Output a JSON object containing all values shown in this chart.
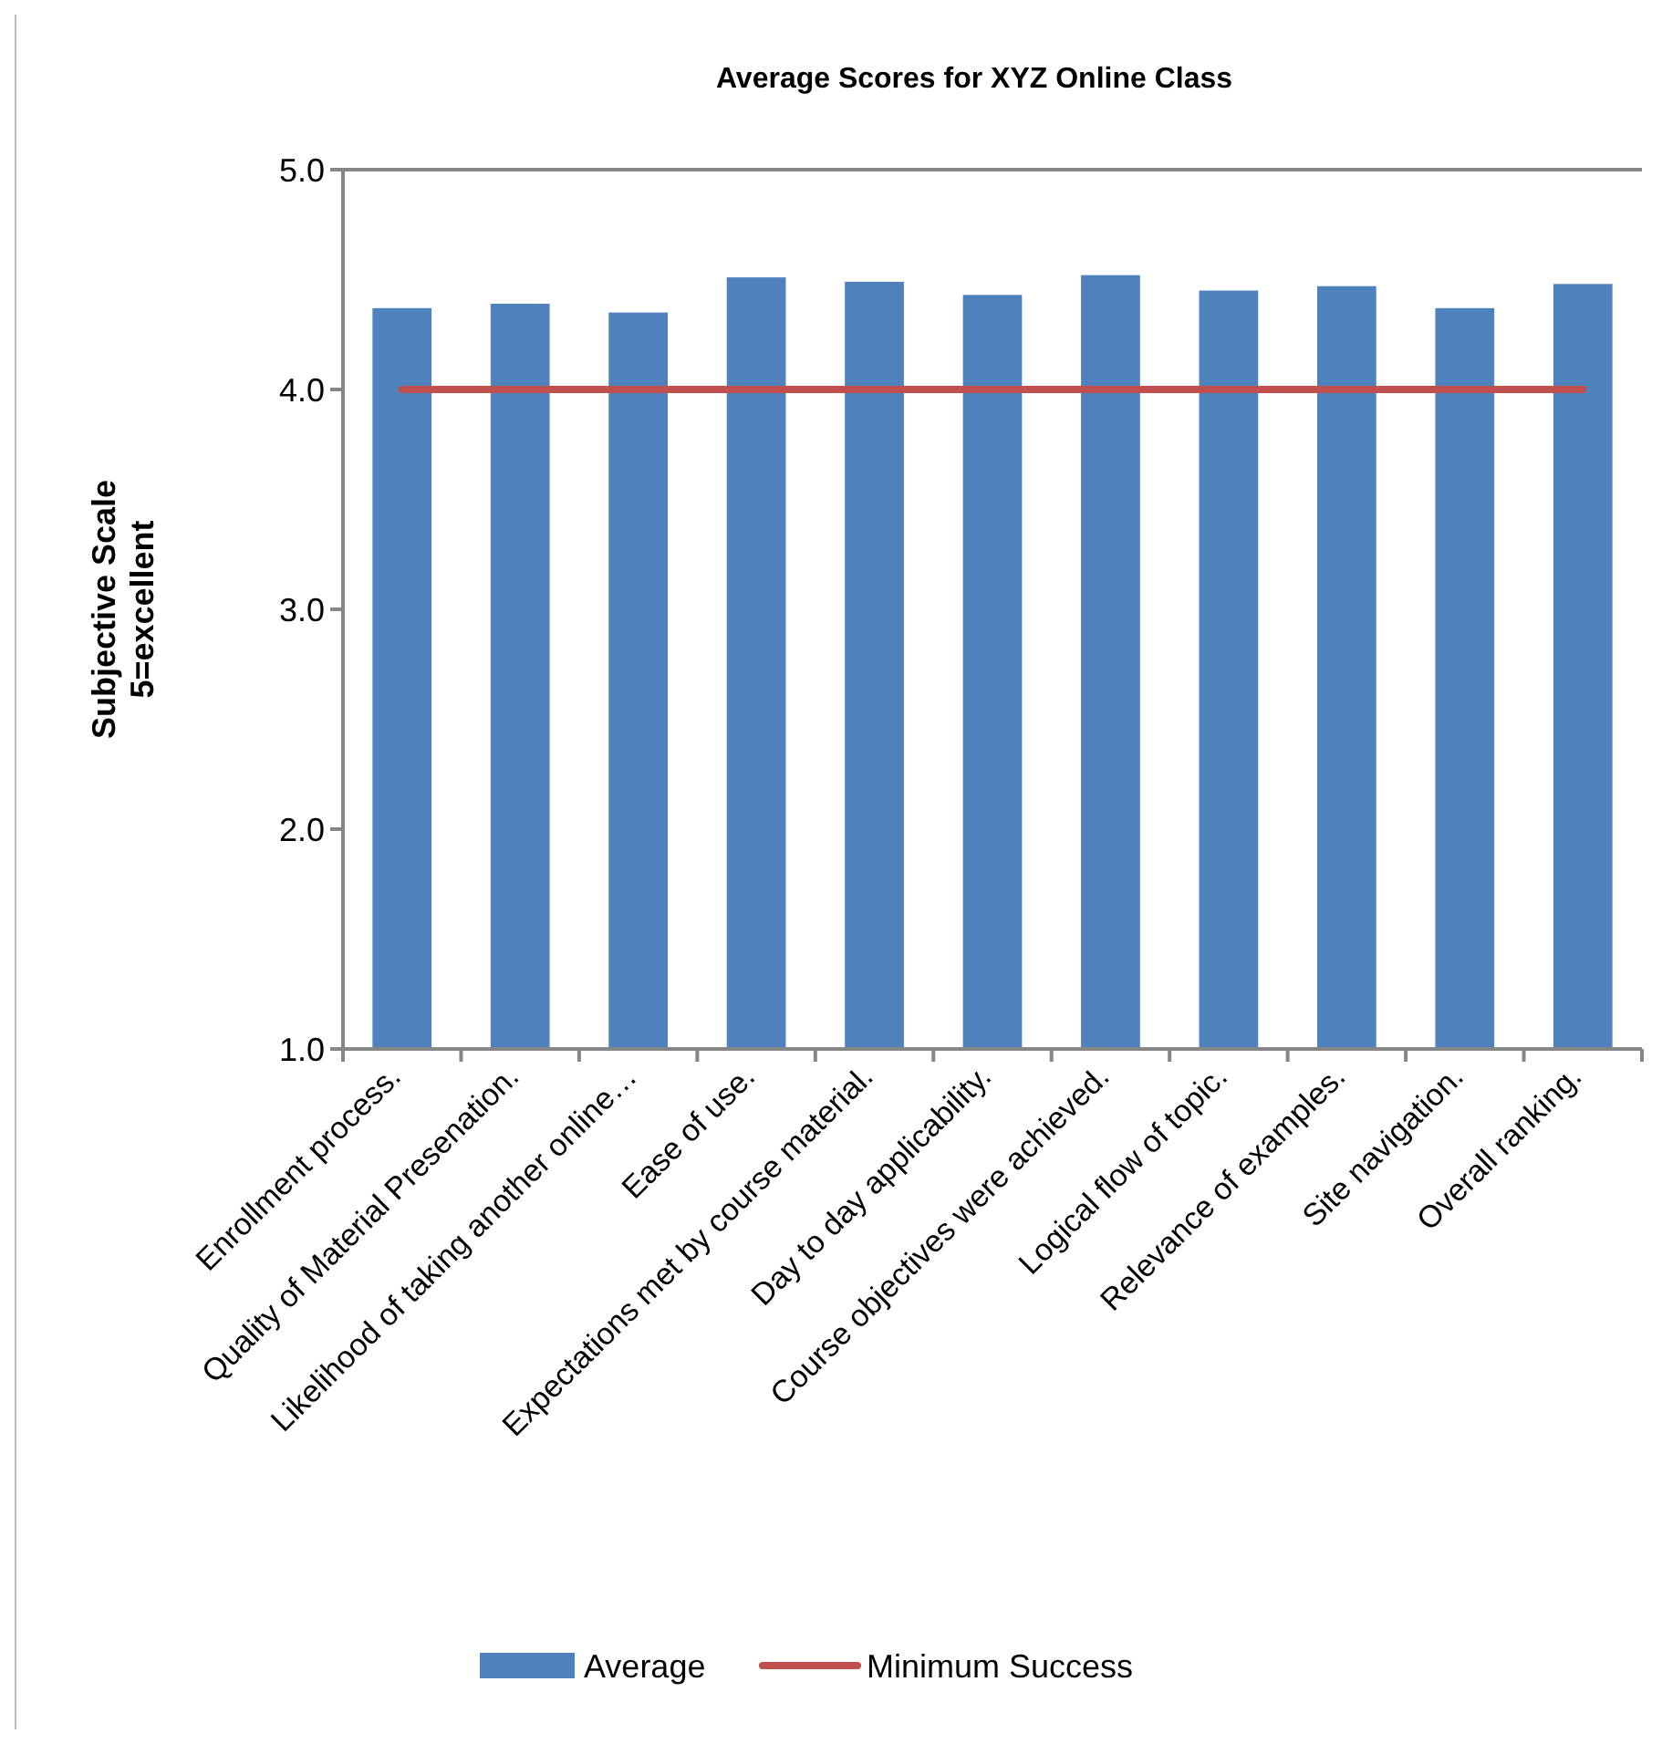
{
  "chart_data": {
    "type": "bar",
    "title": "Average Scores for XYZ Online Class",
    "ylabel": "Subjective Scale\n5=excellent",
    "categories": [
      "Enrollment process.",
      "Quality of Material Presenation.",
      "Likelihood of taking another online…",
      "Ease of use.",
      "Expectations met by course material.",
      "Day to day applicability.",
      "Course objectives were achieved.",
      "Logical flow of topic.",
      "Relevance of examples.",
      "Site navigation.",
      "Overall ranking."
    ],
    "series": [
      {
        "name": "Average",
        "color": "#4f81bd",
        "values": [
          4.37,
          4.39,
          4.35,
          4.51,
          4.49,
          4.43,
          4.52,
          4.45,
          4.47,
          4.37,
          4.48
        ]
      },
      {
        "name": "Minimum Success",
        "type": "line",
        "color": "#c0504d",
        "values": [
          4,
          4,
          4,
          4,
          4,
          4,
          4,
          4,
          4,
          4,
          4
        ]
      }
    ],
    "ylim": [
      1,
      5
    ],
    "yticks": [
      {
        "value": 1,
        "label": "1.0"
      },
      {
        "value": 2,
        "label": "2.0"
      },
      {
        "value": 3,
        "label": "3.0"
      },
      {
        "value": 4,
        "label": "4.0"
      },
      {
        "value": 5,
        "label": "5.0"
      }
    ],
    "grid": false,
    "legend": "bottom"
  }
}
